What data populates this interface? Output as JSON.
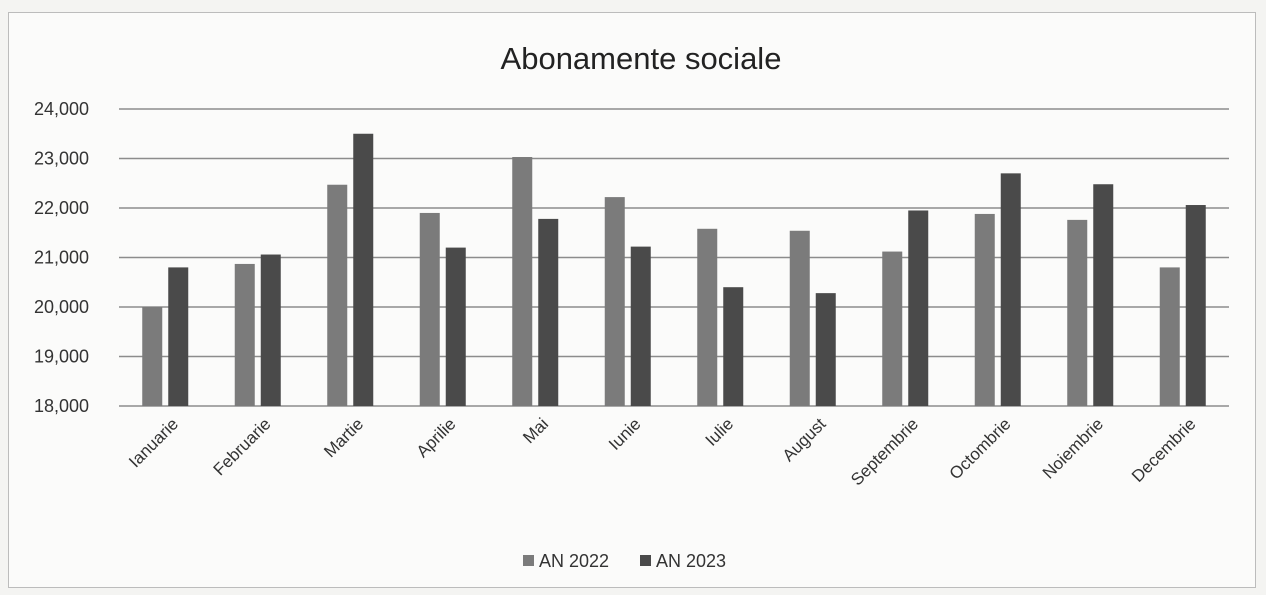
{
  "chart_data": {
    "type": "bar",
    "title": "Abonamente sociale",
    "categories": [
      "Ianuarie",
      "Februarie",
      "Martie",
      "Aprilie",
      "Mai",
      "Iunie",
      "Iulie",
      "August",
      "Septembrie",
      "Octombrie",
      "Noiembrie",
      "Decembrie"
    ],
    "series": [
      {
        "name": "AN 2022",
        "color": "#7b7b7b",
        "values": [
          20000,
          20870,
          22470,
          21900,
          23030,
          22220,
          21580,
          21540,
          21120,
          21880,
          21760,
          20800
        ]
      },
      {
        "name": "AN 2023",
        "color": "#4a4a4a",
        "values": [
          20800,
          21060,
          23500,
          21200,
          21780,
          21220,
          20400,
          20280,
          21950,
          22700,
          22480,
          22060
        ]
      }
    ],
    "yticks": [
      "18,000",
      "19,000",
      "20,000",
      "21,000",
      "22,000",
      "23,000",
      "24,000"
    ],
    "ylim": [
      18000,
      24000
    ],
    "grid": true,
    "legend_position": "bottom"
  }
}
